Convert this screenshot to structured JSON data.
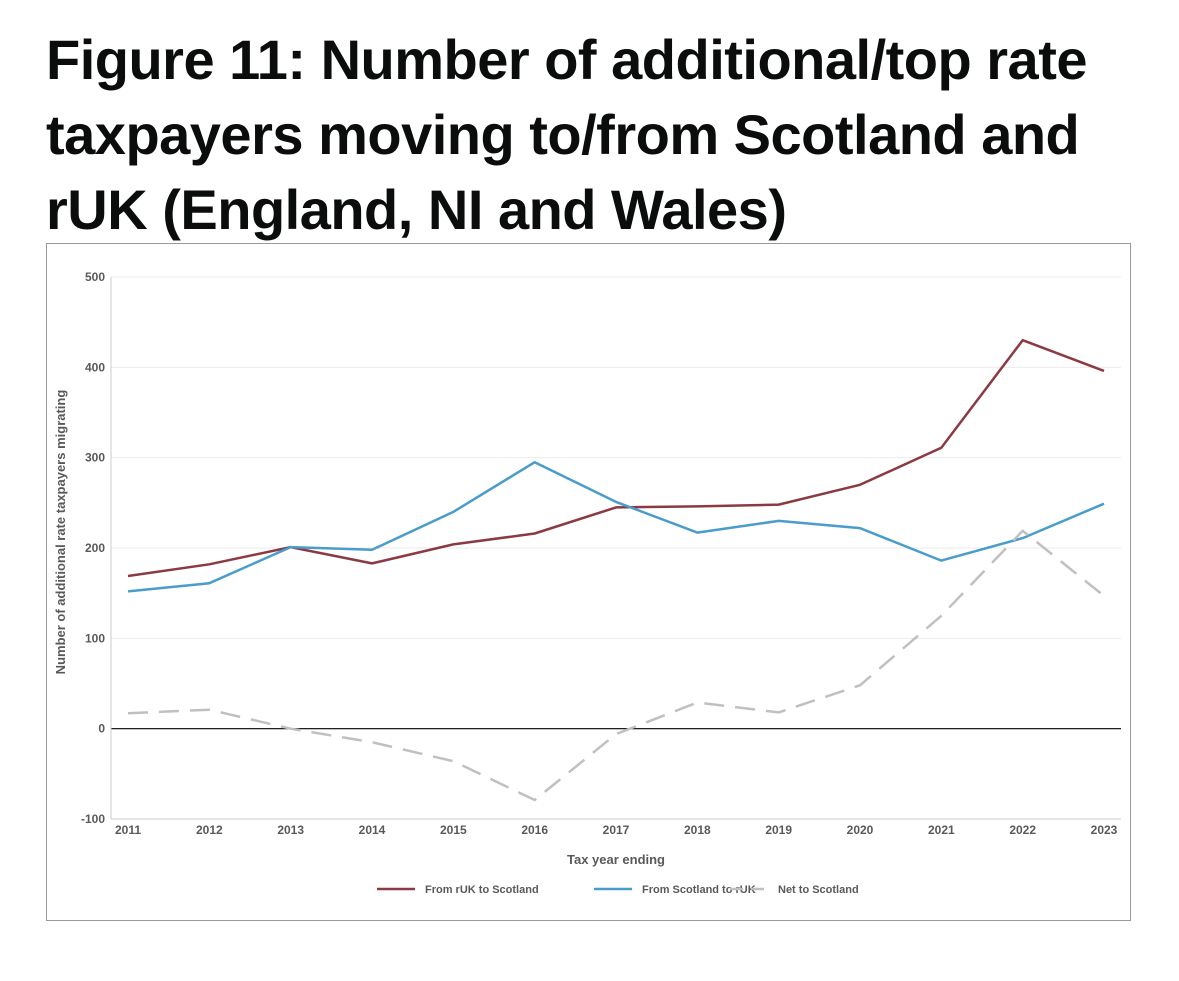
{
  "page": {
    "title": "Figure 11: Number of additional/top rate taxpayers moving to/from Scotland and rUK (England, NI and Wales)"
  },
  "chart_data": {
    "type": "line",
    "title": "Figure 11: Number of additional/top rate taxpayers moving to/from Scotland and rUK (England, NI and Wales)",
    "xlabel": "Tax year ending",
    "ylabel": "Number of additional rate taxpayers migrating",
    "ylim": [
      -100,
      500
    ],
    "yticks": [
      500,
      400,
      300,
      200,
      100,
      0,
      -100
    ],
    "grid": true,
    "legend_position": "bottom",
    "categories": [
      "2011",
      "2012",
      "2013",
      "2014",
      "2015",
      "2016",
      "2017",
      "2018",
      "2019",
      "2020",
      "2021",
      "2022",
      "2023"
    ],
    "series": [
      {
        "name": "From rUK to Scotland",
        "color": "#8b3a44",
        "dash": "solid",
        "values": [
          169,
          182,
          201,
          183,
          204,
          216,
          245,
          246,
          248,
          270,
          311,
          430,
          396
        ]
      },
      {
        "name": "From Scotland to rUK",
        "color": "#4a9cca",
        "dash": "solid",
        "values": [
          152,
          161,
          201,
          198,
          240,
          295,
          251,
          217,
          230,
          222,
          186,
          211,
          249
        ]
      },
      {
        "name": "Net to Scotland",
        "color": "#c0c0c0",
        "dash": "dashed",
        "values": [
          17,
          21,
          0,
          -15,
          -36,
          -79,
          -6,
          29,
          18,
          48,
          125,
          219,
          147
        ]
      }
    ]
  }
}
